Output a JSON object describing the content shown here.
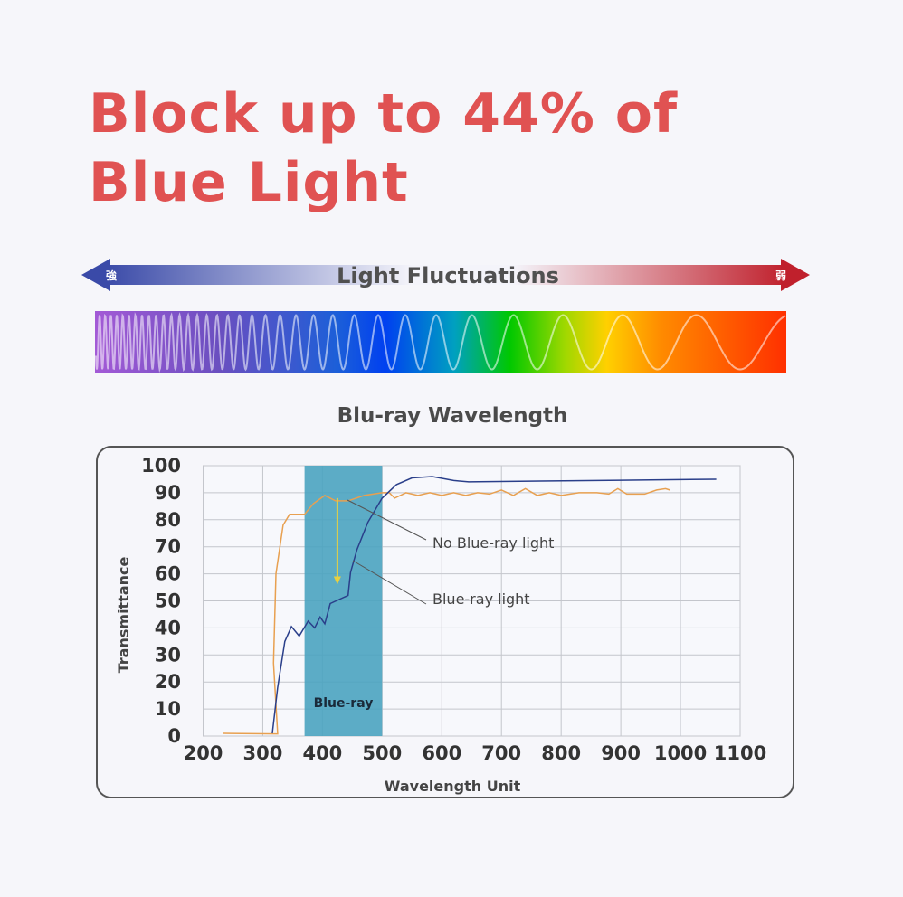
{
  "headline": {
    "line1": "Block up to 44% of",
    "line2": "Blue Light",
    "color": "#e05252"
  },
  "fluctuation_bar": {
    "label": "Light Fluctuations",
    "left_label": "強",
    "right_label": "弱",
    "left_color": "#3a4aa8",
    "right_color": "#c0202c"
  },
  "spectrum_colors": [
    "#a35ad6",
    "#6a4fc0",
    "#1c5fd8",
    "#0040f0",
    "#00a0c0",
    "#00c800",
    "#a0d800",
    "#ffd000",
    "#ff8a00",
    "#ff3000"
  ],
  "chart_data": {
    "type": "line",
    "title": "Blu-ray Wavelength",
    "xlabel": "Wavelength Unit",
    "ylabel": "Transmittance",
    "xlim": [
      200,
      1100
    ],
    "ylim": [
      0,
      100
    ],
    "xticks": [
      200,
      300,
      400,
      500,
      600,
      700,
      800,
      900,
      1000,
      1100
    ],
    "yticks": [
      0,
      10,
      20,
      30,
      40,
      50,
      60,
      70,
      80,
      90,
      100
    ],
    "grid": true,
    "band": {
      "label": "Blue-ray",
      "from": 370,
      "to": 500,
      "color": "#4aa3c0"
    },
    "series": [
      {
        "name": "No Blue-ray light",
        "color": "#e8a050",
        "points": [
          [
            234,
            1
          ],
          [
            325,
            0.8
          ],
          [
            318,
            27
          ],
          [
            322,
            60
          ],
          [
            334,
            78
          ],
          [
            345,
            82
          ],
          [
            355,
            82
          ],
          [
            364,
            82
          ],
          [
            370,
            82
          ],
          [
            385,
            86
          ],
          [
            404,
            89
          ],
          [
            422,
            87
          ],
          [
            443,
            87
          ],
          [
            470,
            89
          ],
          [
            500,
            90
          ],
          [
            512,
            90
          ],
          [
            521,
            88
          ],
          [
            540,
            90
          ],
          [
            560,
            89
          ],
          [
            580,
            90
          ],
          [
            600,
            89
          ],
          [
            620,
            90
          ],
          [
            640,
            89
          ],
          [
            660,
            90
          ],
          [
            680,
            89.5
          ],
          [
            700,
            91
          ],
          [
            720,
            89
          ],
          [
            740,
            91.5
          ],
          [
            760,
            89
          ],
          [
            780,
            90
          ],
          [
            800,
            89
          ],
          [
            830,
            90
          ],
          [
            860,
            90
          ],
          [
            880,
            89.5
          ],
          [
            895,
            91.5
          ],
          [
            910,
            89.5
          ],
          [
            940,
            89.5
          ],
          [
            960,
            91
          ],
          [
            975,
            91.5
          ],
          [
            982,
            91
          ]
        ]
      },
      {
        "name": "Blue-ray light",
        "color": "#2a3f8a",
        "points": [
          [
            316,
            1
          ],
          [
            325,
            18
          ],
          [
            337,
            35
          ],
          [
            348,
            40.5
          ],
          [
            361,
            37
          ],
          [
            376,
            42.5
          ],
          [
            387,
            40
          ],
          [
            396,
            44
          ],
          [
            404,
            41.5
          ],
          [
            413,
            49
          ],
          [
            443,
            52
          ],
          [
            447,
            60.5
          ],
          [
            458,
            69
          ],
          [
            476,
            79
          ],
          [
            500,
            88
          ],
          [
            524,
            93
          ],
          [
            550,
            95.5
          ],
          [
            584,
            96
          ],
          [
            620,
            94.5
          ],
          [
            645,
            94
          ],
          [
            765,
            94.3
          ],
          [
            900,
            94.6
          ],
          [
            1060,
            95
          ]
        ]
      }
    ],
    "annotation_arrow": {
      "x": 425,
      "from": 88,
      "to": 56,
      "color": "#e8d040"
    }
  }
}
